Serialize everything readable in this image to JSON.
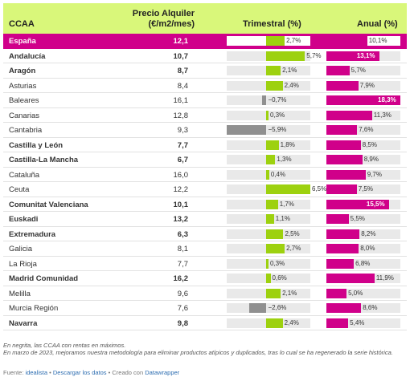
{
  "chart_data": {
    "type": "table",
    "columns": [
      "CCAA",
      "Precio Alquiler (€/m2/mes)",
      "Trimestral (%)",
      "Anual (%)"
    ],
    "precio_header_lines": [
      "Precio Alquiler",
      "(€/m2/mes)"
    ],
    "rows": [
      {
        "name": "España",
        "precio": "12,1",
        "trim": 2.7,
        "trim_label": "2,7%",
        "anual": 10.1,
        "anual_label": "10,1%",
        "bold": true,
        "highlight": true
      },
      {
        "name": "Andalucía",
        "precio": "10,7",
        "trim": 5.7,
        "trim_label": "5,7%",
        "anual": 13.1,
        "anual_label": "13,1%",
        "bold": true
      },
      {
        "name": "Aragón",
        "precio": "8,7",
        "trim": 2.1,
        "trim_label": "2,1%",
        "anual": 5.7,
        "anual_label": "5,7%",
        "bold": true
      },
      {
        "name": "Asturias",
        "precio": "8,4",
        "trim": 2.4,
        "trim_label": "2,4%",
        "anual": 7.9,
        "anual_label": "7,9%",
        "bold": false
      },
      {
        "name": "Baleares",
        "precio": "16,1",
        "trim": -0.7,
        "trim_label": "−0,7%",
        "anual": 18.3,
        "anual_label": "18,3%",
        "bold": false
      },
      {
        "name": "Canarias",
        "precio": "12,8",
        "trim": 0.3,
        "trim_label": "0,3%",
        "anual": 11.3,
        "anual_label": "11,3%",
        "bold": false
      },
      {
        "name": "Cantabria",
        "precio": "9,3",
        "trim": -5.9,
        "trim_label": "−5,9%",
        "anual": 7.6,
        "anual_label": "7,6%",
        "bold": false
      },
      {
        "name": "Castilla y León",
        "precio": "7,7",
        "trim": 1.8,
        "trim_label": "1,8%",
        "anual": 8.5,
        "anual_label": "8,5%",
        "bold": true
      },
      {
        "name": "Castilla-La Mancha",
        "precio": "6,7",
        "trim": 1.3,
        "trim_label": "1,3%",
        "anual": 8.9,
        "anual_label": "8,9%",
        "bold": true
      },
      {
        "name": "Cataluña",
        "precio": "16,0",
        "trim": 0.4,
        "trim_label": "0,4%",
        "anual": 9.7,
        "anual_label": "9,7%",
        "bold": false
      },
      {
        "name": "Ceuta",
        "precio": "12,2",
        "trim": 6.5,
        "trim_label": "6,5%",
        "anual": 7.5,
        "anual_label": "7,5%",
        "bold": false
      },
      {
        "name": "Comunitat Valenciana",
        "precio": "10,1",
        "trim": 1.7,
        "trim_label": "1,7%",
        "anual": 15.5,
        "anual_label": "15,5%",
        "bold": true
      },
      {
        "name": "Euskadi",
        "precio": "13,2",
        "trim": 1.1,
        "trim_label": "1,1%",
        "anual": 5.5,
        "anual_label": "5,5%",
        "bold": true
      },
      {
        "name": "Extremadura",
        "precio": "6,3",
        "trim": 2.5,
        "trim_label": "2,5%",
        "anual": 8.2,
        "anual_label": "8,2%",
        "bold": true
      },
      {
        "name": "Galicia",
        "precio": "8,1",
        "trim": 2.7,
        "trim_label": "2,7%",
        "anual": 8.0,
        "anual_label": "8,0%",
        "bold": false
      },
      {
        "name": "La Rioja",
        "precio": "7,7",
        "trim": 0.3,
        "trim_label": "0,3%",
        "anual": 6.8,
        "anual_label": "6,8%",
        "bold": false
      },
      {
        "name": "Madrid Comunidad",
        "precio": "16,2",
        "trim": 0.6,
        "trim_label": "0,6%",
        "anual": 11.9,
        "anual_label": "11,9%",
        "bold": true
      },
      {
        "name": "Melilla",
        "precio": "9,6",
        "trim": 2.1,
        "trim_label": "2,1%",
        "anual": 5.0,
        "anual_label": "5,0%",
        "bold": false
      },
      {
        "name": "Murcia Región",
        "precio": "7,6",
        "trim": -2.6,
        "trim_label": "−2,6%",
        "anual": 8.6,
        "anual_label": "8,6%",
        "bold": false
      },
      {
        "name": "Navarra",
        "precio": "9,8",
        "trim": 2.4,
        "trim_label": "2,4%",
        "anual": 5.4,
        "anual_label": "5,4%",
        "bold": true
      }
    ],
    "trim_range": [
      -5.9,
      6.5
    ],
    "anual_range": [
      0,
      18.3
    ],
    "colors": {
      "header_bg": "#d9f77a",
      "highlight": "#d0008a",
      "trim_pos": "#9dd10f",
      "trim_neg": "#909090",
      "anual": "#d0008a"
    }
  },
  "notes": [
    "En negrita, las CCAA con rentas en máximos.",
    "En marzo de 2023, mejoramos nuestra metodología para eliminar productos atípicos y duplicados, tras lo cual se ha regenerado la serie histórica."
  ],
  "source": {
    "prefix": "Fuente: ",
    "link1": "idealista",
    "sep1": " • ",
    "link2": "Descargar los datos",
    "sep2": " • Creado con ",
    "link3": "Datawrapper"
  }
}
